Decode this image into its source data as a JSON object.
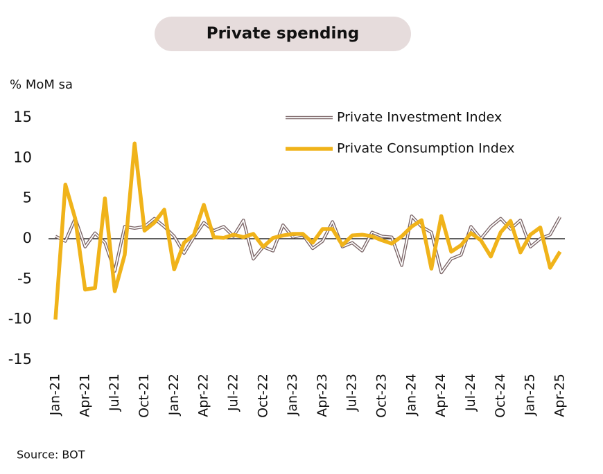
{
  "chart_data": {
    "type": "line",
    "title": "Private spending",
    "y_label": "% MoM sa",
    "source": "Source: BOT",
    "categories": [
      "Jan-21",
      null,
      null,
      "Apr-21",
      null,
      null,
      "Jul-21",
      null,
      null,
      "Oct-21",
      null,
      null,
      "Jan-22",
      null,
      null,
      "Apr-22",
      null,
      null,
      "Jul-22",
      null,
      null,
      "Oct-22",
      null,
      null,
      "Jan-23",
      null,
      null,
      "Apr-23",
      null,
      null,
      "Jul-23",
      null,
      null,
      "Oct-23",
      null,
      null,
      "Jan-24",
      null,
      null,
      "Apr-24",
      null,
      null,
      "Jul-24",
      null,
      null,
      "Oct-24",
      null,
      null,
      "Jan-25",
      null,
      null,
      "Apr-25"
    ],
    "ylim": [
      -15,
      15
    ],
    "yticks": [
      -15,
      -10,
      -5,
      0,
      5,
      10,
      15
    ],
    "series": [
      {
        "name": "Private Investment Index",
        "color": "#7a6466",
        "values": [
          0.3,
          -0.3,
          2.5,
          -1,
          0.7,
          -0.5,
          -4,
          1.5,
          1.3,
          1.5,
          2.5,
          1.5,
          0.3,
          -1.8,
          0.2,
          2,
          1,
          1.5,
          0.3,
          2.3,
          -2.5,
          -1,
          -1.5,
          1.7,
          0.2,
          0.5,
          -1.2,
          -0.3,
          2.1,
          -1,
          -0.5,
          -1.5,
          0.8,
          0.3,
          0.2,
          -3.3,
          2.8,
          1.5,
          0.8,
          -4.2,
          -2.5,
          -2,
          1.5,
          0,
          1.5,
          2.5,
          1.2,
          2.3,
          -1,
          0,
          0.5,
          2.7
        ]
      },
      {
        "name": "Private Consumption Index",
        "color": "#f0b31a",
        "values": [
          -10,
          6.7,
          2.5,
          -6.3,
          -6.1,
          5,
          -6.5,
          -2,
          11.8,
          1,
          2,
          3.6,
          -3.8,
          -0.5,
          0.5,
          4.2,
          0.2,
          0.1,
          0.5,
          0.2,
          0.6,
          -1,
          0.1,
          0.4,
          0.6,
          0.6,
          -0.5,
          1.2,
          1.2,
          -0.8,
          0.4,
          0.5,
          0.3,
          -0.2,
          -0.6,
          0.3,
          1.5,
          2.3,
          -3.7,
          2.8,
          -1.6,
          -0.8,
          0.7,
          -0.2,
          -2.2,
          0.8,
          2.2,
          -1.7,
          0.5,
          1.4,
          -3.6,
          -1.6
        ]
      }
    ]
  }
}
